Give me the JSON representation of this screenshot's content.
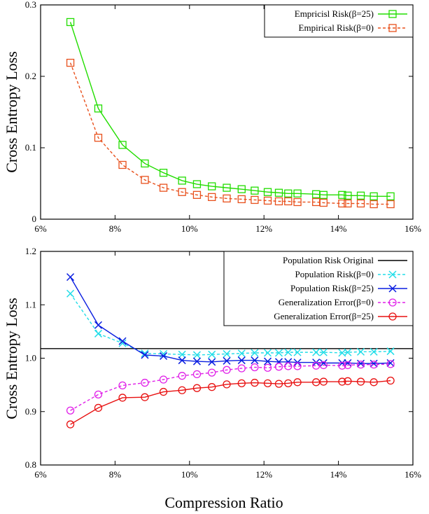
{
  "chart_data": [
    {
      "type": "line",
      "ylabel": "Cross Entropy Loss",
      "xlabel": "",
      "xlim": [
        6,
        16
      ],
      "ylim": [
        0,
        0.3
      ],
      "x_ticks": [
        "6%",
        "8%",
        "10%",
        "12%",
        "14%",
        "16%"
      ],
      "y_ticks": [
        "0",
        "0.1",
        "0.2",
        "0.3"
      ],
      "legend_position": "top-right",
      "series": [
        {
          "name": "Empricisl Risk(β=25)",
          "color": "#22dd00",
          "line": "solid",
          "marker": "square",
          "x": [
            6.8,
            7.55,
            8.2,
            8.8,
            9.3,
            9.8,
            10.2,
            10.6,
            11.0,
            11.4,
            11.75,
            12.1,
            12.4,
            12.65,
            12.9,
            13.4,
            13.6,
            14.1,
            14.25,
            14.6,
            14.95,
            15.4
          ],
          "y": [
            0.276,
            0.155,
            0.104,
            0.078,
            0.065,
            0.054,
            0.049,
            0.046,
            0.044,
            0.042,
            0.04,
            0.038,
            0.037,
            0.036,
            0.036,
            0.035,
            0.034,
            0.034,
            0.033,
            0.033,
            0.032,
            0.032
          ]
        },
        {
          "name": "Empirical Risk(β=0)",
          "color": "#e8501c",
          "line": "dashed",
          "marker": "square",
          "x": [
            6.8,
            7.55,
            8.2,
            8.8,
            9.3,
            9.8,
            10.2,
            10.6,
            11.0,
            11.4,
            11.75,
            12.1,
            12.4,
            12.65,
            12.9,
            13.4,
            13.6,
            14.1,
            14.25,
            14.6,
            14.95,
            15.4
          ],
          "y": [
            0.219,
            0.114,
            0.076,
            0.055,
            0.044,
            0.038,
            0.034,
            0.031,
            0.029,
            0.028,
            0.027,
            0.026,
            0.025,
            0.025,
            0.024,
            0.024,
            0.023,
            0.022,
            0.022,
            0.022,
            0.021,
            0.021
          ]
        }
      ]
    },
    {
      "type": "line",
      "ylabel": "Cross Entropy Loss",
      "xlabel": "Compression Ratio",
      "xlim": [
        6,
        16
      ],
      "ylim": [
        0.8,
        1.2
      ],
      "x_ticks": [
        "6%",
        "8%",
        "10%",
        "12%",
        "14%",
        "16%"
      ],
      "y_ticks": [
        "0.8",
        "0.9",
        "1.0",
        "1.1",
        "1.2"
      ],
      "legend_position": "top-right",
      "hline": {
        "name": "Population Risk Original",
        "y": 1.018,
        "color": "#000000"
      },
      "series": [
        {
          "name": "Population Risk(β=0)",
          "color": "#22dde8",
          "line": "dashed",
          "marker": "x",
          "x": [
            6.8,
            7.55,
            8.2,
            8.8,
            9.3,
            9.8,
            10.2,
            10.6,
            11.0,
            11.4,
            11.75,
            12.1,
            12.4,
            12.65,
            12.9,
            13.4,
            13.6,
            14.1,
            14.25,
            14.6,
            14.95,
            15.4
          ],
          "y": [
            1.121,
            1.046,
            1.028,
            1.009,
            1.008,
            1.007,
            1.006,
            1.007,
            1.008,
            1.009,
            1.01,
            1.01,
            1.01,
            1.011,
            1.011,
            1.011,
            1.011,
            1.01,
            1.011,
            1.012,
            1.012,
            1.013
          ]
        },
        {
          "name": "Population Risk(β=25)",
          "color": "#0a1ee0",
          "line": "solid",
          "marker": "x",
          "x": [
            6.8,
            7.55,
            8.2,
            8.8,
            9.3,
            9.8,
            10.2,
            10.6,
            11.0,
            11.4,
            11.75,
            12.1,
            12.4,
            12.65,
            12.9,
            13.4,
            13.6,
            14.1,
            14.25,
            14.6,
            14.95,
            15.4
          ],
          "y": [
            1.152,
            1.062,
            1.032,
            1.006,
            1.004,
            0.996,
            0.994,
            0.993,
            0.995,
            0.996,
            0.996,
            0.994,
            0.993,
            0.993,
            0.992,
            0.992,
            0.991,
            0.991,
            0.991,
            0.99,
            0.99,
            0.991
          ]
        },
        {
          "name": "Generalization Error(β=0)",
          "color": "#e020e8",
          "line": "dashed",
          "marker": "circle",
          "x": [
            6.8,
            7.55,
            8.2,
            8.8,
            9.3,
            9.8,
            10.2,
            10.6,
            11.0,
            11.4,
            11.75,
            12.1,
            12.4,
            12.65,
            12.9,
            13.4,
            13.6,
            14.1,
            14.25,
            14.6,
            14.95,
            15.4
          ],
          "y": [
            0.902,
            0.932,
            0.949,
            0.954,
            0.96,
            0.967,
            0.97,
            0.973,
            0.978,
            0.981,
            0.983,
            0.982,
            0.984,
            0.985,
            0.985,
            0.986,
            0.987,
            0.986,
            0.987,
            0.988,
            0.988,
            0.989
          ]
        },
        {
          "name": "Generalization Error(β=25)",
          "color": "#e81010",
          "line": "solid",
          "marker": "circle",
          "x": [
            6.8,
            7.55,
            8.2,
            8.8,
            9.3,
            9.8,
            10.2,
            10.6,
            11.0,
            11.4,
            11.75,
            12.1,
            12.4,
            12.65,
            12.9,
            13.4,
            13.6,
            14.1,
            14.25,
            14.6,
            14.95,
            15.4
          ],
          "y": [
            0.876,
            0.907,
            0.926,
            0.927,
            0.937,
            0.94,
            0.944,
            0.946,
            0.951,
            0.953,
            0.954,
            0.953,
            0.952,
            0.953,
            0.955,
            0.955,
            0.956,
            0.956,
            0.957,
            0.956,
            0.955,
            0.958
          ]
        }
      ]
    }
  ]
}
